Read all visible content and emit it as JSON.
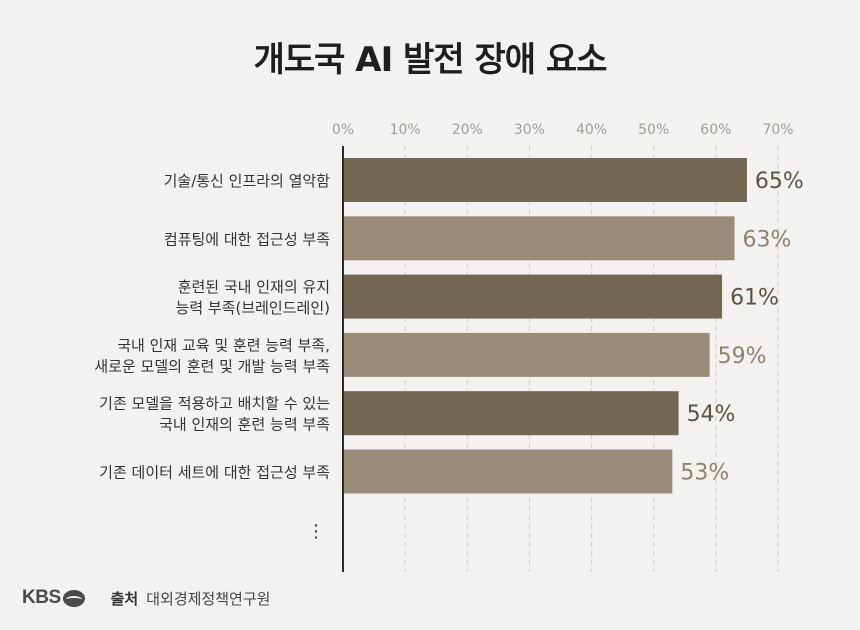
{
  "title": "개도국 AI 발전 장애 요소",
  "footer": {
    "logo_text": "KBS",
    "source_label": "출처",
    "source_value": "대외경제정책연구원"
  },
  "colors": {
    "bar_dark": "#736652",
    "bar_light": "#9b8c79",
    "label_dark": "#5d5344",
    "label_light": "#8f816e",
    "tick_text": "#a09d99",
    "grid": "#cfccc7",
    "axis": "#2b2b2b"
  },
  "chart_data": {
    "type": "bar",
    "orientation": "horizontal",
    "xlim": [
      0,
      70
    ],
    "x_ticks": [
      "0%",
      "10%",
      "20%",
      "30%",
      "40%",
      "50%",
      "60%",
      "70%"
    ],
    "x_tick_values": [
      0,
      10,
      20,
      30,
      40,
      50,
      60,
      70
    ],
    "grid": true,
    "categories": [
      [
        "기술/통신 인프라의 열악함"
      ],
      [
        "컴퓨팅에 대한 접근성 부족"
      ],
      [
        "훈련된 국내 인재의 유지",
        "능력 부족(브레인드레인)"
      ],
      [
        "국내 인재 교육 및 훈련 능력 부족,",
        "새로운 모델의 훈련 및 개발 능력 부족"
      ],
      [
        "기존 모델을 적용하고 배치할 수 있는",
        "국내 인재의 훈련 능력 부족"
      ],
      [
        "기존 데이터 세트에 대한 접근성 부족"
      ]
    ],
    "values": [
      65,
      63,
      61,
      59,
      54,
      53
    ],
    "value_labels": [
      "65%",
      "63%",
      "61%",
      "59%",
      "54%",
      "53%"
    ],
    "more_indicator": "⋮"
  }
}
